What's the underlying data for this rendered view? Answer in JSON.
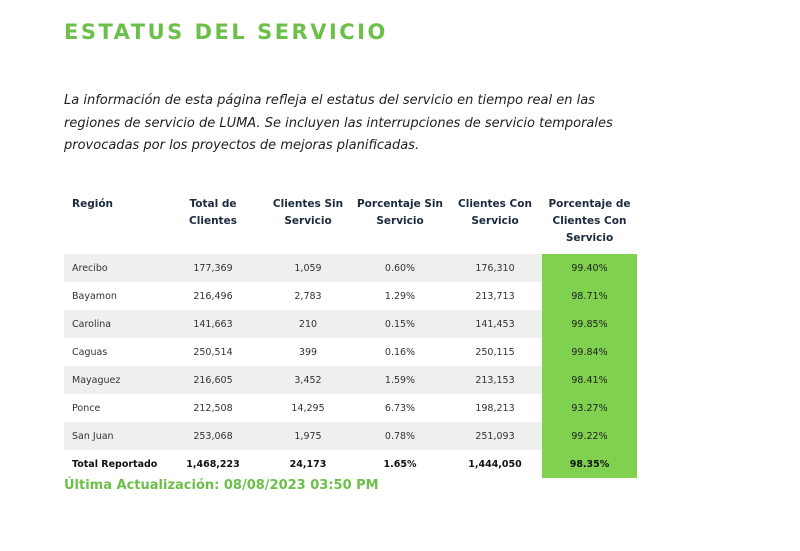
{
  "page": {
    "title": "ESTATUS DEL SERVICIO",
    "description": "La información de esta página refleja el estatus del servicio en tiempo real en las regiones de servicio de LUMA. Se incluyen las interrupciones de servicio temporales provocadas por los proyectos de mejoras planificadas.",
    "last_updated": "Última Actualización: 08/08/2023 03:50 PM",
    "accent_color": "#6cc04a",
    "highlight_color": "#7fd14f"
  },
  "table": {
    "headers": [
      "Región",
      "Total de Clientes",
      "Clientes Sin Servicio",
      "Porcentaje Sin Servicio",
      "Clientes Con Servicio",
      "Porcentaje de Clientes Con Servicio"
    ],
    "rows": [
      [
        "Arecibo",
        "177,369",
        "1,059",
        "0.60%",
        "176,310",
        "99.40%"
      ],
      [
        "Bayamon",
        "216,496",
        "2,783",
        "1.29%",
        "213,713",
        "98.71%"
      ],
      [
        "Carolina",
        "141,663",
        "210",
        "0.15%",
        "141,453",
        "99.85%"
      ],
      [
        "Caguas",
        "250,514",
        "399",
        "0.16%",
        "250,115",
        "99.84%"
      ],
      [
        "Mayaguez",
        "216,605",
        "3,452",
        "1.59%",
        "213,153",
        "98.41%"
      ],
      [
        "Ponce",
        "212,508",
        "14,295",
        "6.73%",
        "198,213",
        "93.27%"
      ],
      [
        "San Juan",
        "253,068",
        "1,975",
        "0.78%",
        "251,093",
        "99.22%"
      ]
    ],
    "total": [
      "Total Reportado",
      "1,468,223",
      "24,173",
      "1.65%",
      "1,444,050",
      "98.35%"
    ]
  }
}
